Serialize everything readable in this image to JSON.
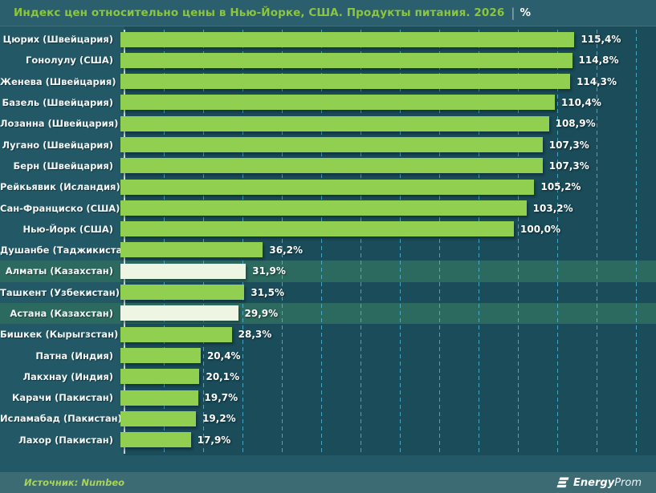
{
  "header": {
    "title": "Индекс цен относительно цены в Нью-Йорке, США. Продукты питания. 2026",
    "separator": "|",
    "unit": "%"
  },
  "chart_data": {
    "type": "bar",
    "orientation": "horizontal",
    "title": "Индекс цен относительно цены в Нью-Йорке, США. Продукты питания. 2026 | %",
    "categories": [
      "Цюрих (Швейцария)",
      "Гонолулу (США)",
      "Женева (Швейцария)",
      "Базель (Швейцария)",
      "Лозанна (Швейцария)",
      "Лугано (Швейцария)",
      "Берн (Швейцария)",
      "Рейкьявик (Исландия)",
      "Сан-Франциско (США)",
      "Нью-Йорк (США)",
      "Душанбе (Таджикистан)",
      "Алматы (Казахстан)",
      "Ташкент (Узбекистан)",
      "Астана (Казахстан)",
      "Бишкек (Кырыгзстан)",
      "Патна (Индия)",
      "Лакхнау (Индия)",
      "Карачи (Пакистан)",
      "Исламабад (Пакистан)",
      "Лахор (Пакистан)"
    ],
    "values": [
      115.4,
      114.8,
      114.3,
      110.4,
      108.9,
      107.3,
      107.3,
      105.2,
      103.2,
      100.0,
      36.2,
      31.9,
      31.5,
      29.9,
      28.3,
      20.4,
      20.1,
      19.7,
      19.2,
      17.9
    ],
    "value_labels": [
      "115,4%",
      "114,8%",
      "114,3%",
      "110,4%",
      "108,9%",
      "107,3%",
      "107,3%",
      "105,2%",
      "103,2%",
      "100,0%",
      "36,2%",
      "31,9%",
      "31,5%",
      "29,9%",
      "28,3%",
      "20,4%",
      "20,1%",
      "19,7%",
      "19,2%",
      "17,9%"
    ],
    "highlight_indices": [
      11,
      13
    ],
    "highlighted_categories": [
      "Алматы (Казахстан)",
      "Астана (Казахстан)"
    ],
    "x_ticks": [
      "0,0%",
      "10,0%",
      "20,0%",
      "30,0%",
      "40,0%",
      "50,0%",
      "60,0%",
      "70,0%",
      "80,0%",
      "90,0%",
      "100,0%",
      "110,0%",
      "120,0%",
      "130,0%"
    ],
    "xlim": [
      0,
      130
    ],
    "grid": "vertical-dashed",
    "legend": "none",
    "colors": {
      "bar": "#90CF4F",
      "highlight_bar": "#EEF6E3",
      "highlight_row": "#2C6A5F",
      "background": "#235966",
      "plot_background": "#1A4F5A",
      "gridline": "#50B4D7",
      "title_accent": "#8CC63E",
      "text": "#FFFFFF"
    }
  },
  "footer": {
    "source": "Источник: Numbeo",
    "logo": {
      "bold": "Energy",
      "light": "Prom"
    }
  }
}
